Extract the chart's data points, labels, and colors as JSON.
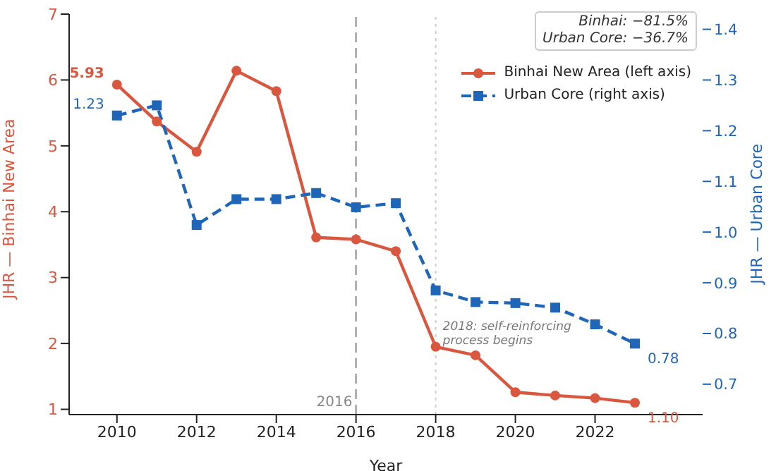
{
  "chart_data": {
    "type": "line",
    "xlabel": "Year",
    "ylabel": "JHR — Binhai New Area",
    "y2label": "JHR — Urban Core",
    "x": [
      2010,
      2011,
      2012,
      2013,
      2014,
      2015,
      2016,
      2017,
      2018,
      2019,
      2020,
      2021,
      2022,
      2023
    ],
    "series": [
      {
        "name": "Binhai New Area (left axis)",
        "color": "#d9573f",
        "marker": "circle",
        "line_style": "solid",
        "values": [
          5.93,
          5.37,
          4.91,
          6.14,
          5.83,
          3.61,
          3.58,
          3.4,
          1.95,
          1.82,
          1.26,
          1.21,
          1.17,
          1.1
        ],
        "value_labels": [
          "5.93",
          null,
          null,
          null,
          null,
          null,
          null,
          null,
          null,
          null,
          null,
          null,
          null,
          "1.10"
        ]
      },
      {
        "name": "Urban Core (right axis)",
        "color": "#1f66b8",
        "marker": "square",
        "line_style": "dashed",
        "axis": "y2",
        "values": [
          1.23,
          1.25,
          1.014,
          1.065,
          1.065,
          1.077,
          1.049,
          1.057,
          0.885,
          0.862,
          0.86,
          0.851,
          0.818,
          0.78
        ],
        "value_labels": [
          "1.23",
          null,
          null,
          null,
          null,
          null,
          null,
          null,
          null,
          null,
          null,
          null,
          null,
          "0.78"
        ]
      }
    ],
    "xlim": [
      2008.8,
      2024.7
    ],
    "xticks": [
      2010,
      2012,
      2014,
      2016,
      2018,
      2020,
      2022
    ],
    "ylim": [
      0.92,
      7.0
    ],
    "yticks": [
      1,
      2,
      3,
      4,
      5,
      6,
      7
    ],
    "y2lim": [
      0.64,
      1.43
    ],
    "y2ticks": [
      0.7,
      0.8,
      0.9,
      {
        "value": 1,
        "label": "1.0"
      },
      1.1,
      1.2,
      1.3,
      1.4
    ],
    "ref_lines": [
      {
        "axis": "x",
        "value": 2016,
        "label": "2016",
        "color": "#888888",
        "line_style": "dashed"
      },
      {
        "axis": "x",
        "value": 2018,
        "label": null,
        "color": "#cccccc",
        "line_style": "dotted"
      }
    ],
    "annotations": [
      "Binhai: −81.5%\nUrban Core: −36.7%",
      {
        "text": "2018: self-reinforcing\nprocess begins",
        "x": 2018,
        "y": 2.2
      }
    ],
    "legend": "top right",
    "grid": false
  }
}
